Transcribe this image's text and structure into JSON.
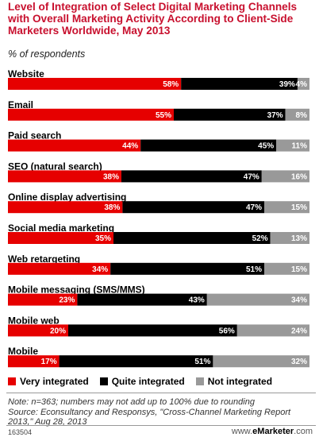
{
  "title": "Level of Integration of Select Digital Marketing Channels with Overall Marketing Activity According to Client-Side Marketers Worldwide, May 2013",
  "subtitle": "% of respondents",
  "chart_data": {
    "type": "bar",
    "orientation": "horizontal",
    "stacked": true,
    "categories": [
      "Website",
      "Email",
      "Paid search",
      "SEO (natural search)",
      "Online display advertising",
      "Social media marketing",
      "Web retargeting",
      "Mobile messaging (SMS/MMS)",
      "Mobile web",
      "Mobile"
    ],
    "series": [
      {
        "name": "Very integrated",
        "color": "#e60000",
        "values": [
          58,
          55,
          44,
          38,
          38,
          35,
          34,
          23,
          20,
          17
        ]
      },
      {
        "name": "Quite integrated",
        "color": "#000000",
        "values": [
          39,
          37,
          45,
          47,
          47,
          52,
          51,
          43,
          56,
          51
        ]
      },
      {
        "name": "Not integrated",
        "color": "#999999",
        "values": [
          4,
          8,
          11,
          16,
          15,
          13,
          15,
          34,
          24,
          32
        ]
      }
    ],
    "value_suffix": "%",
    "legend_position": "bottom-left",
    "grid": false
  },
  "note": "Note: n=363; numbers may not add up to 100% due to rounding",
  "source": "Source: Econsultancy and Responsys, \"Cross-Channel Marketing Report 2013,\" Aug 28, 2013",
  "chart_id": "163504",
  "brand_prefix": "www.",
  "brand_name": "eMarketer",
  "brand_suffix": ".com"
}
